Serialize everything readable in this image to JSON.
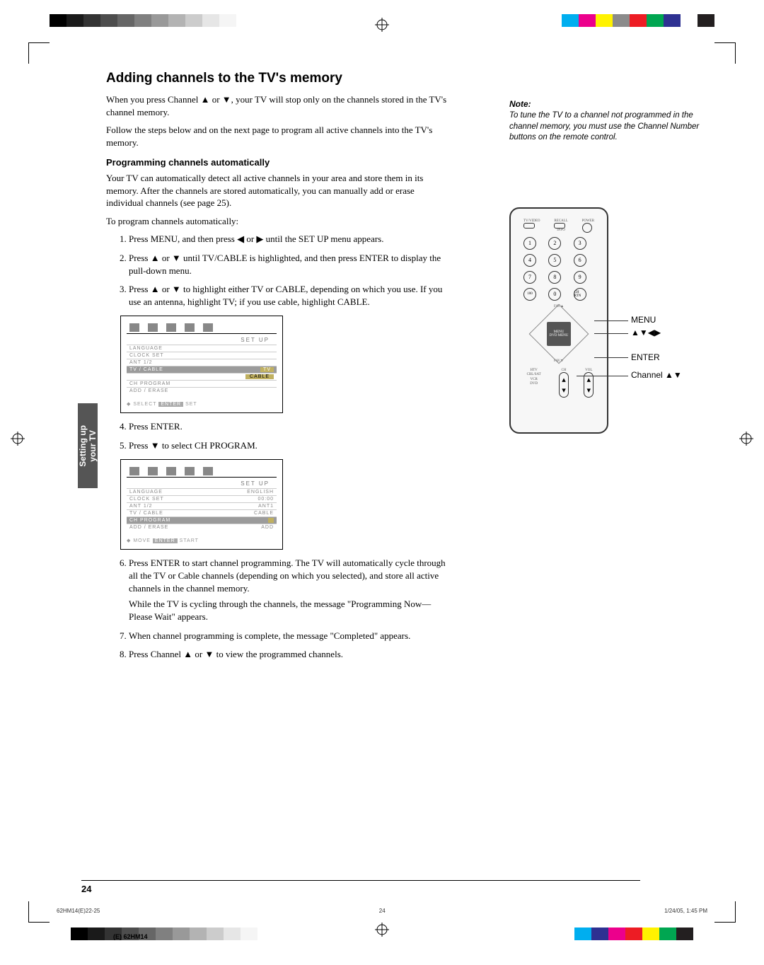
{
  "title": "Adding channels to the TV's memory",
  "intro1": "When you press Channel ▲ or ▼, your TV will stop only on the channels stored in the TV's channel memory.",
  "intro2": "Follow the steps below and on the next page to program all active channels into the TV's memory.",
  "subtitle": "Programming channels automatically",
  "body1": "Your TV can automatically detect all active channels in your area and store them in its memory. After the channels are stored automatically, you can manually add or erase individual channels (see page 25).",
  "body2": "To program channels automatically:",
  "steps": [
    "Press MENU, and then press ◀ or ▶ until the SET UP menu appears.",
    "Press ▲ or ▼ until TV/CABLE is highlighted, and then press ENTER to display the pull-down menu.",
    "Press ▲ or ▼ to highlight either TV or CABLE, depending on which you use. If you use an antenna, highlight TV; if you use cable, highlight CABLE.",
    "Press ENTER.",
    "Press ▼ to select CH PROGRAM.",
    "Press ENTER to start channel programming. The TV will automatically cycle through all the TV or Cable channels (depending on which you selected), and store all active channels in the channel memory.",
    "When channel programming is complete, the message \"Completed\" appears.",
    "Press Channel ▲ or ▼ to view the programmed channels."
  ],
  "step6_sub": "While the TV is cycling through the channels, the message \"Programming Now—Please Wait\" appears.",
  "osd": {
    "header": "SET UP",
    "rows1": [
      {
        "k": "LANGUAGE",
        "v": ""
      },
      {
        "k": "CLOCK SET",
        "v": ""
      },
      {
        "k": "ANT 1/2",
        "v": ""
      },
      {
        "k": "TV / CABLE",
        "v": "TV",
        "hl": true,
        "hlv": false
      },
      {
        "k": "",
        "v": "CABLE",
        "hl": false,
        "hlv": true
      },
      {
        "k": "CH PROGRAM",
        "v": ""
      },
      {
        "k": "ADD / ERASE",
        "v": ""
      }
    ],
    "footer1_a": "SELECT",
    "footer1_b": "ENTER",
    "footer1_c": "SET",
    "rows2": [
      {
        "k": "LANGUAGE",
        "v": "ENGLISH"
      },
      {
        "k": "CLOCK SET",
        "v": "00:00"
      },
      {
        "k": "ANT 1/2",
        "v": "ANT1"
      },
      {
        "k": "TV / CABLE",
        "v": "CABLE"
      },
      {
        "k": "CH PROGRAM",
        "v": "",
        "hl": true
      },
      {
        "k": "ADD / ERASE",
        "v": "ADD"
      }
    ],
    "footer2_a": "MOVE",
    "footer2_b": "ENTER",
    "footer2_c": "START"
  },
  "note": {
    "label": "Note:",
    "text": "To tune the TV to a channel not programmed in the channel memory, you must use the Channel Number buttons on the remote control."
  },
  "remote": {
    "top_labels": [
      "TV/VIDEO",
      "RECALL",
      "POWER"
    ],
    "info": "INFO",
    "nums": [
      "1",
      "2",
      "3",
      "4",
      "5",
      "6",
      "7",
      "8",
      "9",
      "100",
      "0",
      "CH RTN"
    ],
    "fav_up": "FAV▲",
    "fav_dn": "FAV▼",
    "menu_btn": "MENU\nDVD MENU",
    "ch": "CH",
    "vol": "VOL",
    "mode": "HTV\nCBL/SAT\nVCR\nDVD",
    "callouts": {
      "menu": "MENU",
      "arrows": "▲▼◀▶",
      "enter": "ENTER",
      "channel": "Channel ▲▼"
    }
  },
  "side_tab": "Setting up\nyour TV",
  "page_num": "24",
  "footer": {
    "left": "62HM14(E)22-25",
    "mid": "24",
    "right": "1/24/05, 1:45 PM",
    "cut": "(E) 62HM14"
  },
  "colors": {
    "gray_ramp": [
      "#000000",
      "#1a1a1a",
      "#333333",
      "#4d4d4d",
      "#666666",
      "#808080",
      "#999999",
      "#b3b3b3",
      "#cccccc",
      "#e6e6e6",
      "#f5f5f5"
    ],
    "color_bar": [
      "#00aeef",
      "#ec008c",
      "#fff200",
      "#8b8b8b",
      "#ed1c24",
      "#00a651",
      "#2e3192",
      "#ffffff",
      "#231f20"
    ],
    "color_bar2": [
      "#00aeef",
      "#2e3192",
      "#ec008c",
      "#ed1c24",
      "#fff200",
      "#00a651",
      "#231f20"
    ],
    "side_tab_bg": "#555555",
    "osd_highlight": "#c0b060"
  }
}
